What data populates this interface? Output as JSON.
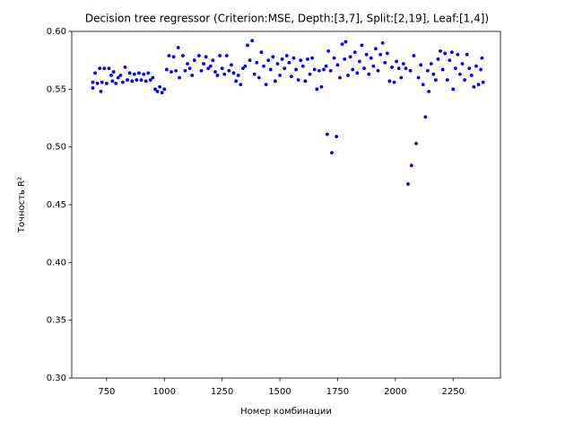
{
  "chart_data": {
    "type": "scatter",
    "title": "Decision tree regressor (Criterion:MSE, Depth:[3,7], Split:[2,19], Leaf:[1,4])",
    "x_label": "Номер комбинации",
    "y_label": "Точность R²",
    "color": "#0000ff",
    "xlim": [
      599,
      2455
    ],
    "ylim": [
      0.3,
      0.6
    ],
    "xticks": [
      750,
      1000,
      1250,
      1500,
      1750,
      2000,
      2250
    ],
    "yticks": [
      {
        "value": 0.3,
        "label": "0.30"
      },
      0.35,
      {
        "value": 0.4,
        "label": "0.40"
      },
      0.45,
      {
        "value": 0.5,
        "label": "0.50"
      },
      0.55,
      {
        "value": 0.6,
        "label": "0.60"
      }
    ],
    "x": [
      690,
      690,
      700,
      710,
      720,
      725,
      730,
      740,
      750,
      760,
      770,
      775,
      780,
      790,
      800,
      810,
      820,
      830,
      840,
      850,
      860,
      870,
      880,
      890,
      900,
      910,
      920,
      930,
      940,
      950,
      960,
      970,
      980,
      990,
      1000,
      1010,
      1020,
      1030,
      1040,
      1050,
      1060,
      1065,
      1080,
      1090,
      1100,
      1110,
      1120,
      1130,
      1150,
      1160,
      1170,
      1180,
      1190,
      1200,
      1210,
      1220,
      1230,
      1240,
      1250,
      1260,
      1270,
      1280,
      1290,
      1300,
      1310,
      1320,
      1330,
      1340,
      1350,
      1360,
      1370,
      1380,
      1390,
      1400,
      1410,
      1420,
      1430,
      1440,
      1450,
      1460,
      1470,
      1480,
      1490,
      1500,
      1510,
      1520,
      1530,
      1540,
      1550,
      1560,
      1570,
      1580,
      1590,
      1600,
      1610,
      1620,
      1630,
      1640,
      1650,
      1660,
      1670,
      1680,
      1690,
      1700,
      1705,
      1710,
      1720,
      1725,
      1735,
      1745,
      1750,
      1760,
      1770,
      1780,
      1785,
      1795,
      1805,
      1815,
      1825,
      1835,
      1845,
      1855,
      1865,
      1875,
      1885,
      1895,
      1905,
      1915,
      1925,
      1935,
      1945,
      1955,
      1965,
      1975,
      1985,
      1995,
      2005,
      2015,
      2025,
      2035,
      2045,
      2055,
      2065,
      2070,
      2080,
      2090,
      2100,
      2110,
      2120,
      2130,
      2140,
      2145,
      2155,
      2165,
      2175,
      2185,
      2195,
      2205,
      2215,
      2225,
      2235,
      2245,
      2250,
      2260,
      2270,
      2280,
      2290,
      2300,
      2310,
      2320,
      2330,
      2340,
      2350,
      2360,
      2370,
      2375,
      2380
    ],
    "values": [
      0.551,
      0.556,
      0.564,
      0.555,
      0.568,
      0.548,
      0.556,
      0.568,
      0.555,
      0.568,
      0.562,
      0.557,
      0.565,
      0.555,
      0.56,
      0.562,
      0.556,
      0.569,
      0.558,
      0.564,
      0.557,
      0.563,
      0.558,
      0.564,
      0.558,
      0.563,
      0.557,
      0.564,
      0.558,
      0.56,
      0.55,
      0.548,
      0.552,
      0.547,
      0.55,
      0.567,
      0.579,
      0.565,
      0.578,
      0.566,
      0.586,
      0.56,
      0.579,
      0.566,
      0.572,
      0.568,
      0.562,
      0.575,
      0.579,
      0.566,
      0.572,
      0.578,
      0.568,
      0.57,
      0.575,
      0.565,
      0.562,
      0.579,
      0.568,
      0.563,
      0.579,
      0.566,
      0.571,
      0.564,
      0.557,
      0.562,
      0.554,
      0.568,
      0.57,
      0.588,
      0.575,
      0.592,
      0.563,
      0.573,
      0.56,
      0.582,
      0.57,
      0.554,
      0.575,
      0.567,
      0.578,
      0.557,
      0.572,
      0.562,
      0.576,
      0.568,
      0.579,
      0.573,
      0.561,
      0.577,
      0.567,
      0.558,
      0.575,
      0.57,
      0.557,
      0.576,
      0.563,
      0.577,
      0.567,
      0.55,
      0.566,
      0.552,
      0.567,
      0.57,
      0.511,
      0.583,
      0.566,
      0.495,
      0.577,
      0.509,
      0.571,
      0.56,
      0.589,
      0.576,
      0.591,
      0.562,
      0.578,
      0.567,
      0.582,
      0.564,
      0.574,
      0.588,
      0.568,
      0.58,
      0.563,
      0.577,
      0.57,
      0.585,
      0.566,
      0.58,
      0.59,
      0.573,
      0.581,
      0.557,
      0.569,
      0.556,
      0.574,
      0.568,
      0.56,
      0.572,
      0.568,
      0.468,
      0.566,
      0.484,
      0.579,
      0.503,
      0.56,
      0.571,
      0.554,
      0.526,
      0.566,
      0.548,
      0.572,
      0.563,
      0.558,
      0.576,
      0.583,
      0.567,
      0.581,
      0.558,
      0.575,
      0.582,
      0.55,
      0.568,
      0.58,
      0.563,
      0.572,
      0.558,
      0.58,
      0.568,
      0.562,
      0.552,
      0.57,
      0.554,
      0.567,
      0.577,
      0.556
    ]
  }
}
